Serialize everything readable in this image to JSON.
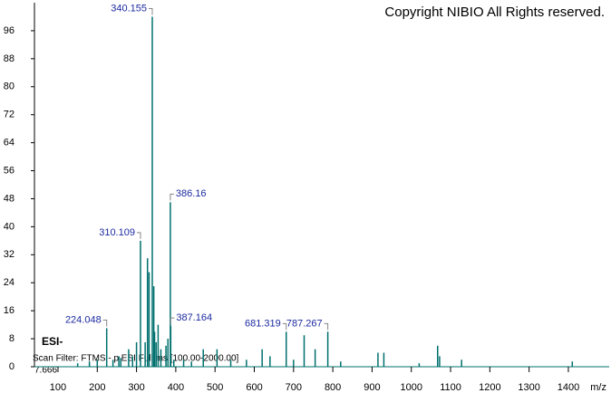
{
  "chart_data": {
    "type": "stem",
    "title": "Copyright NIBIO All Rights reserved.",
    "ionization": "ESI-",
    "scan_filter": "Scan Filter: FTMS - p ESI Full ms [100.00-2000.00]",
    "retention_time": "7.666",
    "x_label": "m/z",
    "color": "#00706e",
    "label_color": "#1c2aa0",
    "xlim": [
      40,
      1504
    ],
    "ylim": [
      0,
      104
    ],
    "xticks": [
      100,
      200,
      300,
      400,
      500,
      600,
      700,
      800,
      900,
      1000,
      1100,
      1200,
      1300,
      1400
    ],
    "yticks": [
      0,
      8,
      16,
      24,
      32,
      40,
      48,
      56,
      64,
      72,
      80,
      88,
      96
    ],
    "x": [
      150,
      180,
      200,
      240,
      255,
      260,
      280,
      290,
      300,
      322,
      328,
      332,
      344,
      346,
      350,
      355,
      362,
      375,
      380,
      395,
      420,
      440,
      470,
      505,
      540,
      580,
      620,
      640,
      700,
      727,
      755,
      820,
      915,
      930,
      1020,
      1067,
      1072,
      1128,
      1410
    ],
    "values": [
      1,
      1.5,
      2,
      2,
      3,
      2.5,
      5,
      3,
      7,
      7,
      31,
      27,
      23,
      10,
      7,
      12,
      5,
      6,
      8,
      2,
      2,
      1.5,
      5,
      5,
      2,
      2,
      5,
      3,
      2,
      9,
      5,
      1.5,
      4,
      4,
      1,
      6,
      3,
      2,
      1.5
    ],
    "labeled_peaks": {
      "x": [
        224.048,
        310.109,
        340.155,
        386.16,
        387.164,
        681.319,
        787.267
      ],
      "values": [
        11,
        36,
        100,
        47,
        11.6,
        10,
        10
      ]
    }
  }
}
